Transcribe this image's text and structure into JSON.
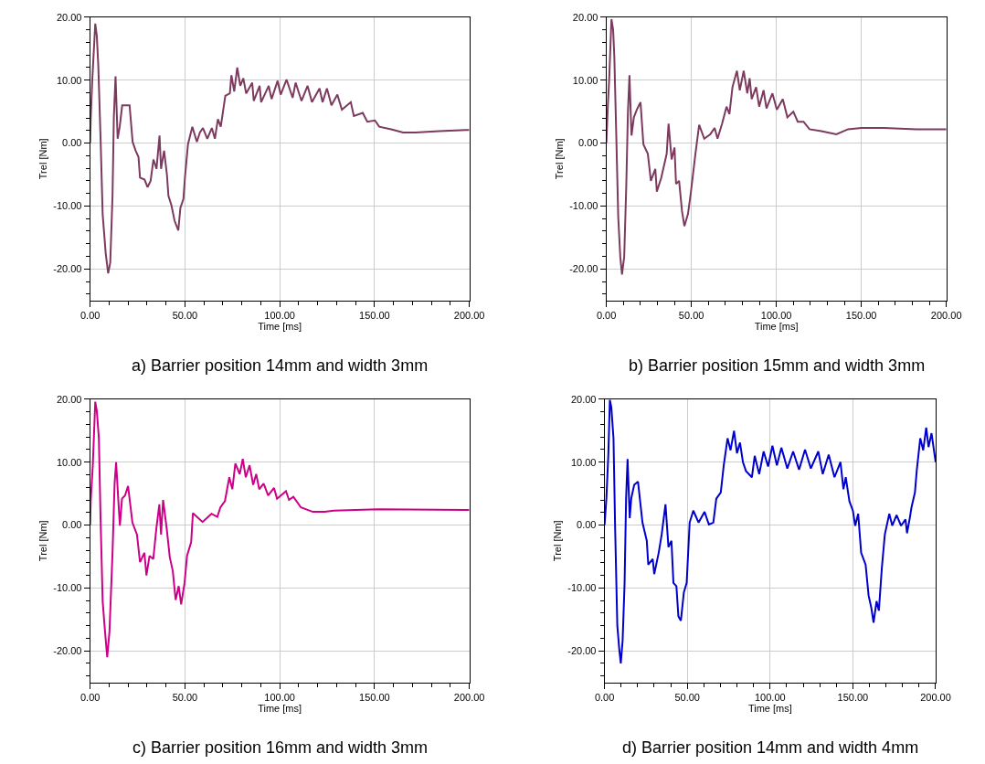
{
  "chart_data": [
    {
      "type": "line",
      "title": "a) Barrier position 14mm and width 3mm",
      "xlabel": "Time [ms]",
      "ylabel": "Trel [Nm]",
      "xlim": [
        0,
        200
      ],
      "ylim": [
        -25,
        20
      ],
      "grid": true,
      "marker": "none",
      "line_style": "solid",
      "xticks": [
        {
          "value": 0,
          "label": "0.00"
        },
        {
          "value": 10,
          "label": null
        },
        {
          "value": 20,
          "label": null
        },
        {
          "value": 30,
          "label": null
        },
        {
          "value": 40,
          "label": null
        },
        {
          "value": 50,
          "label": "50.00"
        },
        {
          "value": 60,
          "label": null
        },
        {
          "value": 70,
          "label": null
        },
        {
          "value": 80,
          "label": null
        },
        {
          "value": 90,
          "label": null
        },
        {
          "value": 100,
          "label": "100.00"
        },
        {
          "value": 110,
          "label": null
        },
        {
          "value": 120,
          "label": null
        },
        {
          "value": 130,
          "label": null
        },
        {
          "value": 140,
          "label": null
        },
        {
          "value": 150,
          "label": "150.00"
        },
        {
          "value": 160,
          "label": null
        },
        {
          "value": 170,
          "label": null
        },
        {
          "value": 180,
          "label": null
        },
        {
          "value": 190,
          "label": null
        },
        {
          "value": 200,
          "label": "200.00"
        }
      ],
      "yticks": [
        {
          "value": -24,
          "label": null
        },
        {
          "value": -22,
          "label": null
        },
        {
          "value": -20,
          "label": "-20.00"
        },
        {
          "value": -18,
          "label": null
        },
        {
          "value": -16,
          "label": null
        },
        {
          "value": -14,
          "label": null
        },
        {
          "value": -12,
          "label": null
        },
        {
          "value": -10,
          "label": "-10.00"
        },
        {
          "value": -8,
          "label": null
        },
        {
          "value": -6,
          "label": null
        },
        {
          "value": -4,
          "label": null
        },
        {
          "value": -2,
          "label": null
        },
        {
          "value": 0,
          "label": "0.00"
        },
        {
          "value": 2,
          "label": null
        },
        {
          "value": 4,
          "label": null
        },
        {
          "value": 6,
          "label": null
        },
        {
          "value": 8,
          "label": null
        },
        {
          "value": 10,
          "label": "10.00"
        },
        {
          "value": 12,
          "label": null
        },
        {
          "value": 14,
          "label": null
        },
        {
          "value": 16,
          "label": null
        },
        {
          "value": 18,
          "label": null
        },
        {
          "value": 20,
          "label": "20.00"
        }
      ],
      "series": [
        {
          "color": "#7b3a5e",
          "x": [
            0,
            0.3,
            1.1,
            2.7,
            3.5,
            4.3,
            5.5,
            6.6,
            8.2,
            9.5,
            10.6,
            11.8,
            12.5,
            13.4,
            14.5,
            15.6,
            16.9,
            19,
            20.8,
            22.4,
            24,
            25.5,
            26.3,
            28.7,
            30.3,
            31.9,
            33.4,
            35,
            36.6,
            37.4,
            39,
            40.5,
            41.3,
            42.9,
            44.5,
            46.5,
            47.6,
            49.2,
            50,
            51.6,
            53.9,
            56.3,
            57.9,
            59.5,
            61.8,
            64.2,
            65.8,
            67.4,
            68.9,
            71.3,
            73.7,
            74.5,
            76,
            77.6,
            79.2,
            80.8,
            82.3,
            85.5,
            86.3,
            89.4,
            90.2,
            94.2,
            95.7,
            98.9,
            100.5,
            103.6,
            106.8,
            108.4,
            111.5,
            114.7,
            117,
            121,
            122.6,
            124.9,
            127.3,
            130.4,
            132.8,
            137.5,
            139.1,
            143.8,
            146.2,
            150.2,
            152.5,
            158.8,
            165.1,
            171.5,
            184,
            200
          ],
          "values": [
            0,
            3.8,
            9.9,
            19,
            17.1,
            12.3,
            0.7,
            -11.3,
            -17.5,
            -20.7,
            -19,
            -8.4,
            4.1,
            10.6,
            0.7,
            2.6,
            6,
            6,
            6,
            0.2,
            -1.2,
            -2.2,
            -5.5,
            -5.8,
            -7,
            -6,
            -2.6,
            -4.1,
            1.2,
            -4.1,
            -1.2,
            -5,
            -8.4,
            -9.9,
            -12.3,
            -13.9,
            -10.3,
            -8.9,
            -5.5,
            -0.2,
            2.6,
            0.2,
            1.7,
            2.4,
            0.7,
            2.4,
            0.7,
            3.8,
            2.6,
            7.5,
            7.9,
            10.8,
            8.2,
            12,
            9.1,
            10.3,
            7.9,
            9.6,
            6.7,
            9.1,
            6.5,
            9.1,
            7,
            9.9,
            7.7,
            10.1,
            7.2,
            9.6,
            6.7,
            9.1,
            6.5,
            8.7,
            6.5,
            8.7,
            6,
            7.7,
            5.3,
            6.5,
            4.3,
            4.8,
            3.4,
            3.6,
            2.6,
            2.2,
            1.7,
            1.7,
            1.9,
            2.1
          ]
        }
      ]
    },
    {
      "type": "line",
      "title": "b) Barrier position 15mm and width 3mm",
      "xlabel": "Time [ms]",
      "ylabel": "Trel [Nm]",
      "xlim": [
        0,
        200
      ],
      "ylim": [
        -25,
        20
      ],
      "grid": true,
      "marker": "none",
      "line_style": "solid",
      "xticks": [
        {
          "value": 0,
          "label": "0.00"
        },
        {
          "value": 10,
          "label": null
        },
        {
          "value": 20,
          "label": null
        },
        {
          "value": 30,
          "label": null
        },
        {
          "value": 40,
          "label": null
        },
        {
          "value": 50,
          "label": "50.00"
        },
        {
          "value": 60,
          "label": null
        },
        {
          "value": 70,
          "label": null
        },
        {
          "value": 80,
          "label": null
        },
        {
          "value": 90,
          "label": null
        },
        {
          "value": 100,
          "label": "100.00"
        },
        {
          "value": 110,
          "label": null
        },
        {
          "value": 120,
          "label": null
        },
        {
          "value": 130,
          "label": null
        },
        {
          "value": 140,
          "label": null
        },
        {
          "value": 150,
          "label": "150.00"
        },
        {
          "value": 160,
          "label": null
        },
        {
          "value": 170,
          "label": null
        },
        {
          "value": 180,
          "label": null
        },
        {
          "value": 190,
          "label": null
        },
        {
          "value": 200,
          "label": "200.00"
        }
      ],
      "yticks": [
        {
          "value": -24,
          "label": null
        },
        {
          "value": -22,
          "label": null
        },
        {
          "value": -20,
          "label": "-20.00"
        },
        {
          "value": -18,
          "label": null
        },
        {
          "value": -16,
          "label": null
        },
        {
          "value": -14,
          "label": null
        },
        {
          "value": -12,
          "label": null
        },
        {
          "value": -10,
          "label": "-10.00"
        },
        {
          "value": -8,
          "label": null
        },
        {
          "value": -6,
          "label": null
        },
        {
          "value": -4,
          "label": null
        },
        {
          "value": -2,
          "label": null
        },
        {
          "value": 0,
          "label": "0.00"
        },
        {
          "value": 2,
          "label": null
        },
        {
          "value": 4,
          "label": null
        },
        {
          "value": 6,
          "label": null
        },
        {
          "value": 8,
          "label": null
        },
        {
          "value": 10,
          "label": "10.00"
        },
        {
          "value": 12,
          "label": null
        },
        {
          "value": 14,
          "label": null
        },
        {
          "value": 16,
          "label": null
        },
        {
          "value": 18,
          "label": null
        },
        {
          "value": 20,
          "label": "20.00"
        }
      ],
      "series": [
        {
          "color": "#7b3a5e",
          "x": [
            0,
            0.9,
            1.7,
            3,
            4,
            4.7,
            5.8,
            7,
            8.2,
            9.2,
            10.5,
            11.7,
            12.7,
            13.6,
            14.8,
            16.2,
            17.9,
            20.1,
            21.8,
            24.4,
            26.2,
            28.8,
            29.7,
            32.3,
            35.5,
            36.6,
            38.4,
            40.1,
            41,
            42.8,
            44.5,
            45.9,
            48,
            49.7,
            52.4,
            54.6,
            57.6,
            61.1,
            63.7,
            65.4,
            68.1,
            70.7,
            72.4,
            74.2,
            76.8,
            78.5,
            80.8,
            82.9,
            84.3,
            85.5,
            88.1,
            89.9,
            92.5,
            94.2,
            97.7,
            100.3,
            103.8,
            106.5,
            110,
            112.6,
            116,
            119.5,
            126.5,
            135.3,
            142.2,
            150.1,
            163.2,
            182.4,
            200
          ],
          "values": [
            0,
            6,
            10.3,
            19.7,
            18,
            13.7,
            1.7,
            -11.8,
            -18.1,
            -20.9,
            -18.1,
            -7,
            5,
            10.8,
            1.2,
            4.1,
            5.3,
            6.5,
            -0.2,
            -1.7,
            -6,
            -4.1,
            -7.7,
            -5.5,
            -1.7,
            3.1,
            -2.6,
            -0.7,
            -6.5,
            -6,
            -10.8,
            -13.2,
            -11.3,
            -7.9,
            -1.7,
            2.9,
            0.7,
            1.4,
            2.4,
            0.7,
            3.1,
            5.8,
            4.6,
            8.9,
            11.5,
            8.4,
            11.5,
            7.9,
            10.3,
            7,
            8.9,
            5.8,
            8.4,
            5.5,
            7.9,
            5.3,
            7,
            4.1,
            5,
            3.4,
            3.4,
            2.2,
            1.9,
            1.4,
            2.2,
            2.4,
            2.4,
            2.2,
            2.2
          ]
        }
      ]
    },
    {
      "type": "line",
      "title": "c) Barrier position 16mm and width 3mm",
      "xlabel": "Time [ms]",
      "ylabel": "Trel [Nm]",
      "xlim": [
        0,
        200
      ],
      "ylim": [
        -25,
        20
      ],
      "grid": true,
      "marker": "none",
      "line_style": "solid",
      "xticks": [
        {
          "value": 0,
          "label": "0.00"
        },
        {
          "value": 10,
          "label": null
        },
        {
          "value": 20,
          "label": null
        },
        {
          "value": 30,
          "label": null
        },
        {
          "value": 40,
          "label": null
        },
        {
          "value": 50,
          "label": "50.00"
        },
        {
          "value": 60,
          "label": null
        },
        {
          "value": 70,
          "label": null
        },
        {
          "value": 80,
          "label": null
        },
        {
          "value": 90,
          "label": null
        },
        {
          "value": 100,
          "label": "100.00"
        },
        {
          "value": 110,
          "label": null
        },
        {
          "value": 120,
          "label": null
        },
        {
          "value": 130,
          "label": null
        },
        {
          "value": 140,
          "label": null
        },
        {
          "value": 150,
          "label": "150.00"
        },
        {
          "value": 160,
          "label": null
        },
        {
          "value": 170,
          "label": null
        },
        {
          "value": 180,
          "label": null
        },
        {
          "value": 190,
          "label": null
        },
        {
          "value": 200,
          "label": "200.00"
        }
      ],
      "yticks": [
        {
          "value": -24,
          "label": null
        },
        {
          "value": -22,
          "label": null
        },
        {
          "value": -20,
          "label": "-20.00"
        },
        {
          "value": -18,
          "label": null
        },
        {
          "value": -16,
          "label": null
        },
        {
          "value": -14,
          "label": null
        },
        {
          "value": -12,
          "label": null
        },
        {
          "value": -10,
          "label": "-10.00"
        },
        {
          "value": -8,
          "label": null
        },
        {
          "value": -6,
          "label": null
        },
        {
          "value": -4,
          "label": null
        },
        {
          "value": -2,
          "label": null
        },
        {
          "value": 0,
          "label": "0.00"
        },
        {
          "value": 2,
          "label": null
        },
        {
          "value": 4,
          "label": null
        },
        {
          "value": 6,
          "label": null
        },
        {
          "value": 8,
          "label": null
        },
        {
          "value": 10,
          "label": "10.00"
        },
        {
          "value": 12,
          "label": null
        },
        {
          "value": 14,
          "label": null
        },
        {
          "value": 16,
          "label": null
        },
        {
          "value": 18,
          "label": null
        },
        {
          "value": 20,
          "label": "20.00"
        }
      ],
      "series": [
        {
          "color": "#cc0088",
          "x": [
            0,
            0.3,
            1.4,
            2.7,
            3.5,
            4.6,
            5.5,
            6.6,
            7.7,
            9,
            10.2,
            11.8,
            12.9,
            13.7,
            14.8,
            15.7,
            16.8,
            18.4,
            20,
            22.3,
            24.7,
            26.3,
            28.6,
            29.7,
            31.3,
            33.3,
            34.9,
            36.5,
            37.4,
            38.5,
            40.4,
            42,
            43.6,
            45.1,
            46.7,
            48,
            49.8,
            51.1,
            53.3,
            54.2,
            59.3,
            64,
            67.1,
            68.7,
            71.1,
            73.4,
            75,
            76.6,
            78.9,
            80.5,
            82.1,
            84.1,
            86,
            87.6,
            89.2,
            91.5,
            93.9,
            97,
            98.6,
            103.3,
            104.9,
            107.2,
            111.2,
            117.5,
            123.7,
            128.5,
            152,
            200
          ],
          "values": [
            0,
            3.8,
            9.5,
            19.6,
            18.2,
            13.8,
            0.9,
            -12.1,
            -16.4,
            -21,
            -16.9,
            -4.4,
            6.6,
            10,
            4.2,
            -0.1,
            4.2,
            4.7,
            6.2,
            0.4,
            -1.5,
            -5.9,
            -4.4,
            -8,
            -4.9,
            -5.4,
            -0.6,
            3.3,
            -1.5,
            4,
            -0.6,
            -5.1,
            -7.3,
            -11.9,
            -9.7,
            -12.6,
            -9.2,
            -4.9,
            -2.7,
            1.9,
            0.5,
            1.8,
            1.3,
            2.8,
            3.8,
            7.6,
            5.7,
            9.8,
            8.1,
            10.5,
            7.6,
            9.5,
            6.4,
            8.1,
            5.7,
            6.6,
            4.7,
            5.9,
            4.2,
            5.4,
            4,
            4.5,
            2.8,
            2.1,
            2.1,
            2.3,
            2.5,
            2.4
          ]
        }
      ]
    },
    {
      "type": "line",
      "title": "d) Barrier position 14mm and width 4mm",
      "xlabel": "Time [ms]",
      "ylabel": "Trel [Nm]",
      "xlim": [
        0,
        200
      ],
      "ylim": [
        -25,
        20
      ],
      "grid": true,
      "marker": "none",
      "line_style": "solid",
      "xticks": [
        {
          "value": 0,
          "label": "0.00"
        },
        {
          "value": 10,
          "label": null
        },
        {
          "value": 20,
          "label": null
        },
        {
          "value": 30,
          "label": null
        },
        {
          "value": 40,
          "label": null
        },
        {
          "value": 50,
          "label": "50.00"
        },
        {
          "value": 60,
          "label": null
        },
        {
          "value": 70,
          "label": null
        },
        {
          "value": 80,
          "label": null
        },
        {
          "value": 90,
          "label": null
        },
        {
          "value": 100,
          "label": "100.00"
        },
        {
          "value": 110,
          "label": null
        },
        {
          "value": 120,
          "label": null
        },
        {
          "value": 130,
          "label": null
        },
        {
          "value": 140,
          "label": null
        },
        {
          "value": 150,
          "label": "150.00"
        },
        {
          "value": 160,
          "label": null
        },
        {
          "value": 170,
          "label": null
        },
        {
          "value": 180,
          "label": null
        },
        {
          "value": 190,
          "label": null
        },
        {
          "value": 200,
          "label": "200.00"
        }
      ],
      "yticks": [
        {
          "value": -24,
          "label": null
        },
        {
          "value": -22,
          "label": null
        },
        {
          "value": -20,
          "label": "-20.00"
        },
        {
          "value": -18,
          "label": null
        },
        {
          "value": -16,
          "label": null
        },
        {
          "value": -14,
          "label": null
        },
        {
          "value": -12,
          "label": null
        },
        {
          "value": -10,
          "label": "-10.00"
        },
        {
          "value": -8,
          "label": null
        },
        {
          "value": -6,
          "label": null
        },
        {
          "value": -4,
          "label": null
        },
        {
          "value": -2,
          "label": null
        },
        {
          "value": 0,
          "label": "0.00"
        },
        {
          "value": 2,
          "label": null
        },
        {
          "value": 4,
          "label": null
        },
        {
          "value": 6,
          "label": null
        },
        {
          "value": 8,
          "label": null
        },
        {
          "value": 10,
          "label": "10.00"
        },
        {
          "value": 12,
          "label": null
        },
        {
          "value": 14,
          "label": null
        },
        {
          "value": 16,
          "label": null
        },
        {
          "value": 18,
          "label": null
        },
        {
          "value": 20,
          "label": "20.00"
        }
      ],
      "series": [
        {
          "color": "#0000cc",
          "x": [
            0,
            1.1,
            2.3,
            3.2,
            4.1,
            5.4,
            6.4,
            7.7,
            8.9,
            9.8,
            10.9,
            12.1,
            13,
            13.9,
            15.2,
            16.1,
            17.9,
            20.2,
            22.9,
            25.5,
            26.4,
            29.1,
            30,
            32.7,
            34.5,
            36.8,
            38.6,
            40.4,
            41.6,
            43.4,
            44.6,
            46.1,
            47.9,
            49.6,
            51.4,
            53.6,
            56.8,
            60.4,
            63,
            65.7,
            67.5,
            70.2,
            72,
            74.3,
            76.1,
            78.2,
            80,
            81.8,
            83.6,
            85.4,
            89,
            90.7,
            93.4,
            96.1,
            98.8,
            101.4,
            104.1,
            106.8,
            110.4,
            113.9,
            117.5,
            121.1,
            124.6,
            129.1,
            131.8,
            135.4,
            138.9,
            142.5,
            144.3,
            145.7,
            147.9,
            150,
            151.4,
            153.2,
            155,
            157.7,
            159.5,
            161.1,
            162.5,
            164.3,
            165.7,
            167.5,
            169.3,
            172,
            173.8,
            176.4,
            179.1,
            181.8,
            182.7,
            184.5,
            185.4,
            187.5,
            188.6,
            190.7,
            192.5,
            194.3,
            195.7,
            197.5,
            200
          ],
          "values": [
            0,
            4.2,
            11.4,
            19.9,
            18.7,
            13.8,
            -0.6,
            -16,
            -19.8,
            -22,
            -18.4,
            -9.2,
            4.2,
            10.5,
            1.1,
            4.2,
            6.4,
            6.9,
            0.4,
            -2.5,
            -6.3,
            -5.4,
            -7.8,
            -4.4,
            -1.5,
            3.3,
            -3.5,
            -2.5,
            -9.2,
            -9.7,
            -14.5,
            -15.2,
            -10.7,
            -9.2,
            0.4,
            2.3,
            0.4,
            2.1,
            0.1,
            0.4,
            4.2,
            5.2,
            9.5,
            13.8,
            11.9,
            15,
            11.4,
            13.1,
            10,
            8.6,
            7.6,
            11,
            8.1,
            11.7,
            9.3,
            12.6,
            9.5,
            12.3,
            9,
            11.7,
            8.8,
            12,
            9,
            11.7,
            8.1,
            11.2,
            7.6,
            10,
            5.7,
            7.6,
            3.8,
            2.3,
            -0.1,
            1.8,
            -4.4,
            -6.3,
            -11.2,
            -13.1,
            -15.5,
            -12.1,
            -13.6,
            -6.8,
            -1.5,
            1.8,
            -0.1,
            1.6,
            -0.1,
            0.9,
            -1.3,
            1.3,
            2.8,
            5.2,
            8.7,
            13.8,
            11.9,
            15.5,
            12.4,
            14.6,
            10
          ]
        }
      ]
    }
  ]
}
